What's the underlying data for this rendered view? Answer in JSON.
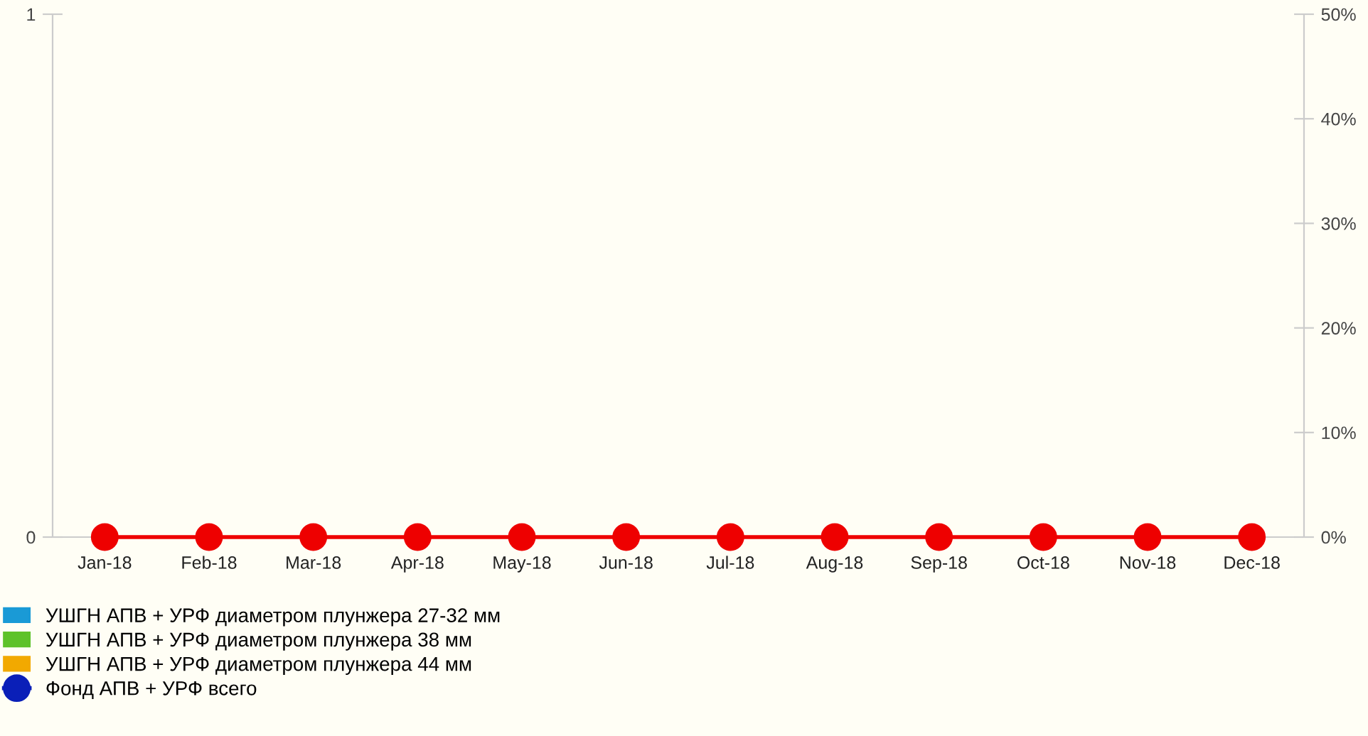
{
  "chart_data": {
    "type": "bar",
    "categories": [
      "Jan-18",
      "Feb-18",
      "Mar-18",
      "Apr-18",
      "May-18",
      "Jun-18",
      "Jul-18",
      "Aug-18",
      "Sep-18",
      "Oct-18",
      "Nov-18",
      "Dec-18"
    ],
    "series": [
      {
        "name": "УШГН АПВ + УРФ диаметром плунжера 27-32 мм",
        "color": "#1a9ad6",
        "values": [
          0,
          0,
          0,
          0,
          0,
          0,
          0,
          0,
          0,
          0,
          0,
          0
        ]
      },
      {
        "name": "УШГН АПВ + УРФ диаметром плунжера 38 мм",
        "color": "#5ec22a",
        "values": [
          0,
          0,
          0,
          0,
          0,
          0,
          0,
          0,
          0,
          0,
          0,
          0
        ]
      },
      {
        "name": "УШГН АПВ + УРФ диаметром плунжера 44 мм",
        "color": "#f2a900",
        "values": [
          0,
          0,
          0,
          0,
          0,
          0,
          0,
          0,
          0,
          0,
          0,
          0
        ]
      },
      {
        "name": "Фонд АПВ + УРФ всего",
        "type": "line",
        "marker": "circle",
        "color": "#0a1fb8",
        "values": [
          null,
          null,
          null,
          null,
          null,
          null,
          null,
          null,
          null,
          null,
          null,
          null
        ]
      },
      {
        "type": "line",
        "marker": "circle",
        "color": "#ee0000",
        "values": [
          0,
          0,
          0,
          0,
          0,
          0,
          0,
          0,
          0,
          0,
          0,
          0
        ]
      }
    ],
    "ylim": [
      0,
      1
    ],
    "yticks": [
      0,
      1
    ],
    "y2lim": [
      0,
      50
    ],
    "y2ticks": [
      {
        "value": 0,
        "label": "0%"
      },
      {
        "value": 10,
        "label": "10%"
      },
      {
        "value": 20,
        "label": "20%"
      },
      {
        "value": 30,
        "label": "30%"
      },
      {
        "value": 40,
        "label": "40%"
      },
      {
        "value": 50,
        "label": "50%"
      }
    ],
    "grid": false,
    "legend": "bottom"
  }
}
